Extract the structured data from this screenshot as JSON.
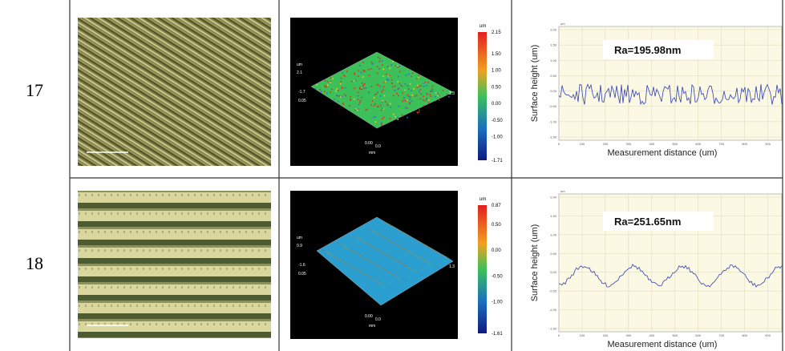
{
  "rows": [
    {
      "number": "17",
      "surface_3d": {
        "colorbar_unit": "um",
        "colorbar_ticks": [
          "2.15",
          "1.50",
          "1.00",
          "0.50",
          "0.00",
          "-0.50",
          "-1.00",
          "-1.71"
        ],
        "axis_labels": [
          "um",
          "2.1",
          "-1.7",
          "0.05",
          "1.3",
          "0.00",
          "0.0",
          "mm"
        ]
      },
      "profile": {
        "annotation": "Ra=195.98nm",
        "y_label": "Surface height (um)",
        "x_label": "Measurement distance (um)",
        "y_unit": "um",
        "y_ticks": [
          "2.00",
          "1.50",
          "1.00",
          "0.50",
          "0.00",
          "-0.50",
          "-1.00",
          "-1.50"
        ],
        "x_ticks": [
          "0",
          "100",
          "200",
          "300",
          "400",
          "500",
          "600",
          "700",
          "800",
          "900"
        ]
      }
    },
    {
      "number": "18",
      "surface_3d": {
        "colorbar_unit": "um",
        "colorbar_ticks": [
          "0.87",
          "0.50",
          "0.00",
          "-0.50",
          "-1.00",
          "-1.61"
        ],
        "axis_labels": [
          "um",
          "0.9",
          "-1.6",
          "0.05",
          "1.3",
          "0.00",
          "0.0",
          "mm"
        ]
      },
      "profile": {
        "annotation": "Ra=251.65nm",
        "y_label": "Surface height (um)",
        "x_label": "Measurement distance (um)",
        "y_unit": "um",
        "y_ticks": [
          "2.00",
          "1.50",
          "1.00",
          "0.50",
          "0.00",
          "-0.50",
          "-1.00",
          "-1.50"
        ],
        "x_ticks": [
          "0",
          "100",
          "200",
          "300",
          "400",
          "500",
          "600",
          "700",
          "800",
          "900"
        ]
      }
    }
  ]
}
